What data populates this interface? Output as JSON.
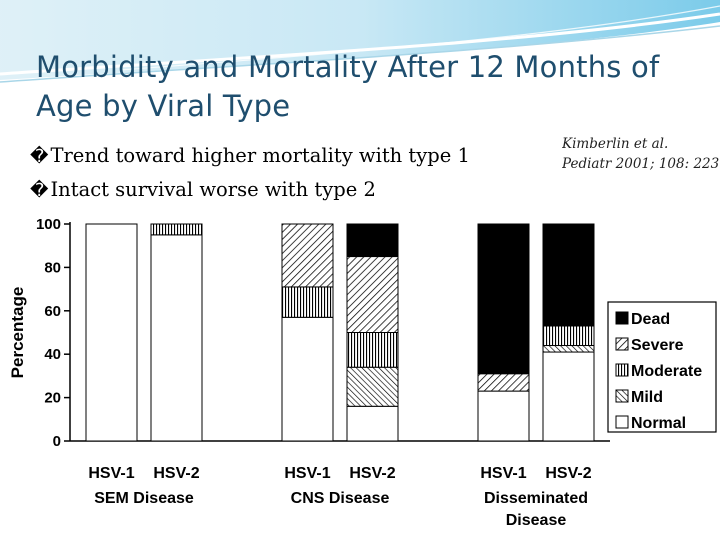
{
  "slide": {
    "title": "Morbidity and Mortality After 12 Months of Age by Viral Type",
    "bullet_mark": "�",
    "bullets": [
      "Trend toward higher mortality with type 1",
      "Intact survival worse with type 2"
    ],
    "citation": [
      "Kimberlin et al.",
      "Pediatr 2001; 108: 223"
    ]
  },
  "chart_data": {
    "type": "bar",
    "stacked": true,
    "ylabel": "Percentage",
    "ylim": [
      0,
      100
    ],
    "yticks": [
      0,
      20,
      40,
      60,
      80,
      100
    ],
    "groups": [
      {
        "label": [
          "SEM Disease"
        ],
        "bars": [
          "HSV-1",
          "HSV-2"
        ]
      },
      {
        "label": [
          "CNS Disease"
        ],
        "bars": [
          "HSV-1",
          "HSV-2"
        ]
      },
      {
        "label": [
          "Disseminated",
          "Disease"
        ],
        "bars": [
          "HSV-1",
          "HSV-2"
        ]
      }
    ],
    "categories": [
      "SEM HSV-1",
      "SEM HSV-2",
      "CNS HSV-1",
      "CNS HSV-2",
      "Disseminated HSV-1",
      "Disseminated HSV-2"
    ],
    "series": [
      {
        "name": "Normal",
        "pattern": "normal",
        "values": [
          100,
          95,
          57,
          16,
          23,
          41
        ]
      },
      {
        "name": "Mild",
        "pattern": "mild",
        "values": [
          0,
          0,
          0,
          18,
          0,
          3
        ]
      },
      {
        "name": "Moderate",
        "pattern": "moderate",
        "values": [
          0,
          5,
          14,
          16,
          0,
          9
        ]
      },
      {
        "name": "Severe",
        "pattern": "severe",
        "values": [
          0,
          0,
          29,
          35,
          8,
          0
        ]
      },
      {
        "name": "Dead",
        "pattern": "dead",
        "values": [
          0,
          0,
          0,
          15,
          69,
          47
        ]
      }
    ],
    "legend_order": [
      "Dead",
      "Severe",
      "Moderate",
      "Mild",
      "Normal"
    ],
    "legend_position": "right",
    "grid": false
  }
}
